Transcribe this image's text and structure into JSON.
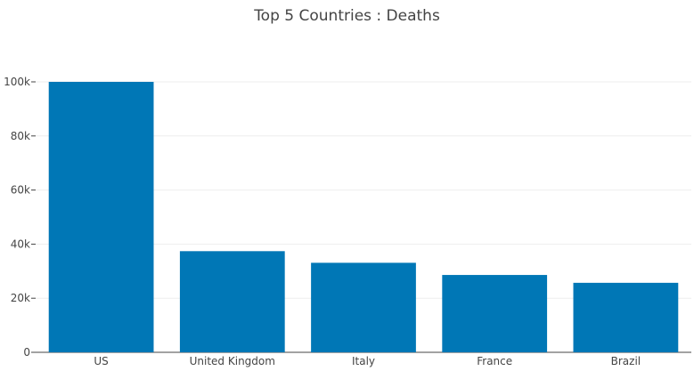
{
  "chart_data": {
    "type": "bar",
    "title": "Top 5 Countries : Deaths",
    "categories": [
      "US",
      "United Kingdom",
      "Italy",
      "France",
      "Brazil"
    ],
    "values": [
      100000,
      37400,
      33100,
      28600,
      25700
    ],
    "xlabel": "",
    "ylabel": "",
    "ylim": [
      0,
      100000
    ],
    "yticks": [
      0,
      20000,
      40000,
      60000,
      80000,
      100000
    ],
    "ytick_labels": [
      "0",
      "20k",
      "40k",
      "60k",
      "80k",
      "100k"
    ],
    "grid": true,
    "legend": "none",
    "bar_color": "#0077b6",
    "grid_color": "#eeeeee",
    "axis_color": "#444444"
  }
}
